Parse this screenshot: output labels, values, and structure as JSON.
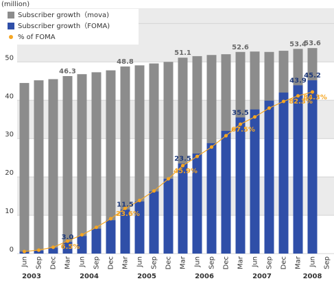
{
  "chart_data": {
    "type": "bar",
    "bar_mode": "overlap",
    "ylabel": "(million)",
    "categories": [
      "Jun",
      "Sep",
      "Dec",
      "Mar",
      "Jun",
      "Sep",
      "Dec",
      "Mar",
      "Jun",
      "Sep",
      "Dec",
      "Mar",
      "Jun",
      "Sep",
      "Dec",
      "Mar",
      "Jun",
      "Sep",
      "Dec",
      "Mar",
      "Jun",
      "Sep"
    ],
    "years": [
      "2003",
      "2004",
      "2005",
      "2006",
      "2007",
      "2008"
    ],
    "series": [
      {
        "name": "Subscriber growth（mova)",
        "type": "bar",
        "color": "#8c8c8c",
        "label_color": "#6a6a6a",
        "values": [
          44.5,
          45.2,
          45.5,
          46.3,
          46.8,
          47.3,
          47.8,
          48.8,
          49.1,
          49.6,
          50.0,
          51.1,
          51.5,
          51.8,
          52.0,
          52.6,
          52.7,
          52.6,
          52.9,
          53.4,
          53.6,
          null
        ],
        "value_labels": [
          null,
          null,
          null,
          "46.3",
          null,
          null,
          null,
          "48.8",
          null,
          null,
          null,
          "51.1",
          null,
          null,
          null,
          "52.6",
          null,
          null,
          null,
          "53.4",
          "53.6",
          null
        ]
      },
      {
        "name": "Subscriber growth（FOMA)",
        "type": "bar",
        "color": "#2f4fa8",
        "label_color": "#1f3a7a",
        "values": [
          0.5,
          0.8,
          1.5,
          3.0,
          4.6,
          6.5,
          8.7,
          11.5,
          13.6,
          16.2,
          19.5,
          23.5,
          26.1,
          28.8,
          32.0,
          35.5,
          37.6,
          39.9,
          42.0,
          43.9,
          45.2,
          null
        ],
        "value_labels": [
          null,
          null,
          null,
          "3.0",
          null,
          null,
          null,
          "11.5",
          null,
          null,
          null,
          "23.5",
          null,
          null,
          null,
          "35.5",
          null,
          null,
          null,
          "43.9",
          "45.2",
          null
        ]
      },
      {
        "name": "% of FOMA",
        "type": "line",
        "axis": "y2",
        "color": "#f5a623",
        "label_color": "#f5a623",
        "values": [
          1.1,
          1.8,
          3.3,
          6.5,
          9.8,
          13.7,
          18.2,
          23.6,
          27.7,
          32.7,
          39.0,
          45.9,
          50.7,
          55.6,
          61.5,
          67.5,
          71.3,
          75.9,
          79.4,
          82.3,
          84.3,
          null
        ],
        "value_labels": [
          null,
          null,
          null,
          "6.5%",
          null,
          null,
          null,
          "23.6%",
          null,
          null,
          null,
          "45.9%",
          null,
          null,
          null,
          "67.5%",
          null,
          null,
          null,
          "82.3%",
          "84.3%",
          null
        ]
      }
    ],
    "ylim": [
      0,
      64
    ],
    "yticks": [
      0,
      10,
      20,
      30,
      40,
      50,
      60
    ],
    "y2lim": [
      0,
      128
    ],
    "grid": true,
    "legend": "upper left"
  }
}
